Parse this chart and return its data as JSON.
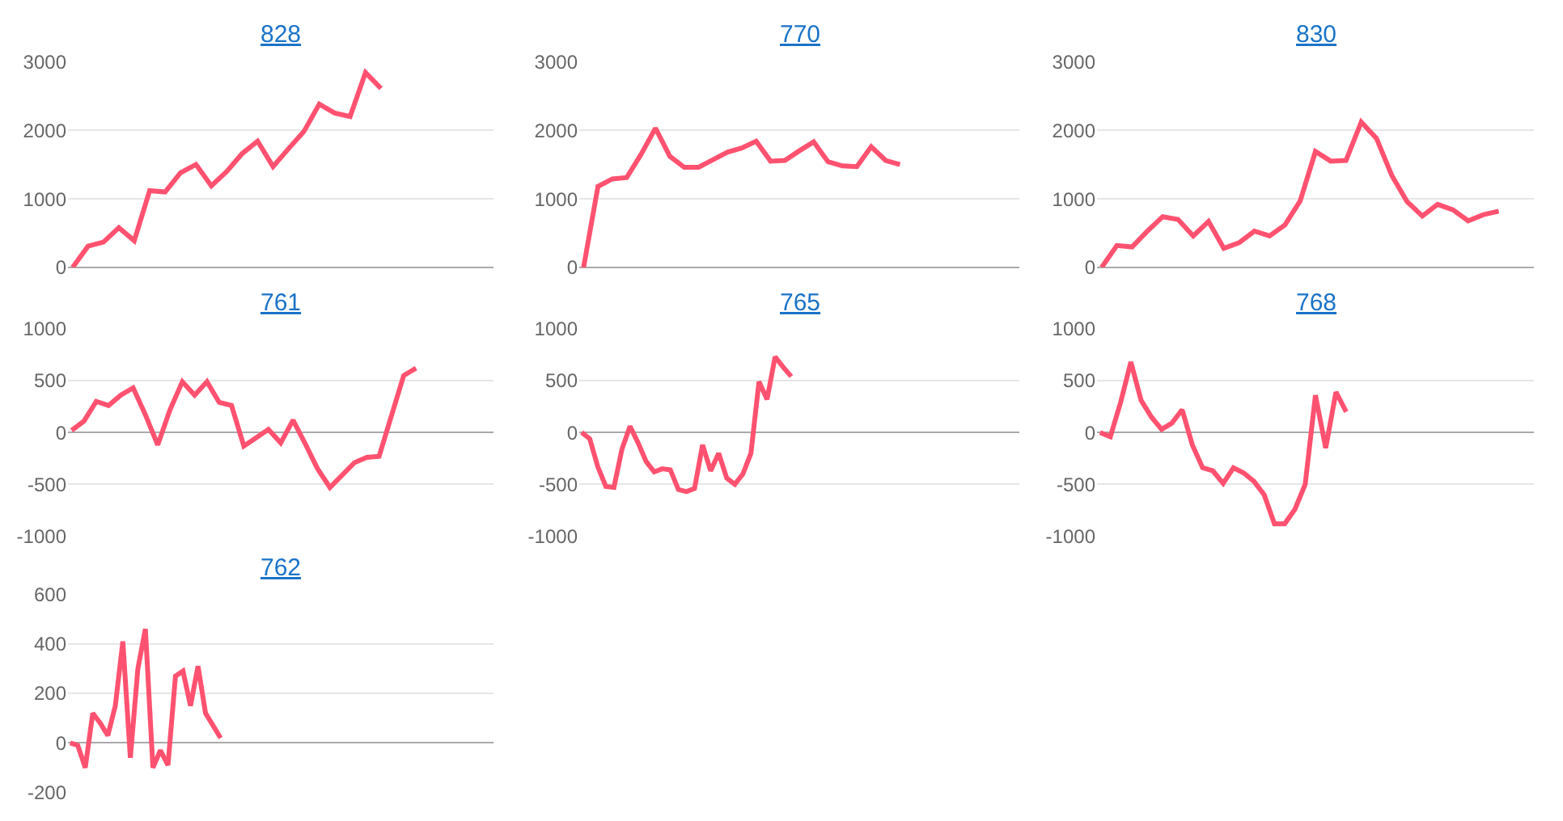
{
  "chart_data": [
    {
      "type": "line",
      "title": "828",
      "color": "#ff5270",
      "marker": "none",
      "grid": "y",
      "ylim": [
        0,
        3000
      ],
      "yticks": [
        0,
        1000,
        2000,
        3000
      ],
      "categories": [
        null,
        null,
        null,
        null,
        null,
        null,
        null,
        null,
        null,
        null,
        null,
        null,
        null,
        null,
        null,
        null,
        null,
        null,
        null,
        null,
        null,
        null,
        null,
        null,
        null,
        null,
        null,
        null
      ],
      "values": [
        0,
        310,
        370,
        580,
        390,
        1120,
        1100,
        1380,
        1500,
        1190,
        1400,
        1660,
        1840,
        1470,
        1730,
        1980,
        2380,
        2250,
        2200,
        2840,
        2610,
        null,
        null,
        null,
        null,
        null,
        null,
        null
      ]
    },
    {
      "type": "line",
      "title": "770",
      "color": "#ff5270",
      "marker": "none",
      "grid": "y",
      "ylim": [
        0,
        3000
      ],
      "yticks": [
        0,
        1000,
        2000,
        3000
      ],
      "categories": [
        null,
        null,
        null,
        null,
        null,
        null,
        null,
        null,
        null,
        null,
        null,
        null,
        null,
        null,
        null,
        null,
        null,
        null,
        null,
        null,
        null,
        null,
        null,
        null,
        null,
        null,
        null,
        null,
        null,
        null,
        null
      ],
      "values": [
        0,
        1180,
        1290,
        1310,
        1650,
        2030,
        1620,
        1460,
        1460,
        1570,
        1680,
        1740,
        1840,
        1550,
        1560,
        1700,
        1830,
        1540,
        1480,
        1470,
        1760,
        1560,
        1500,
        null,
        null,
        null,
        null,
        null,
        null,
        null,
        null
      ]
    },
    {
      "type": "line",
      "title": "830",
      "color": "#ff5270",
      "marker": "none",
      "grid": "y",
      "ylim": [
        0,
        3000
      ],
      "yticks": [
        0,
        1000,
        2000,
        3000
      ],
      "categories": [
        null,
        null,
        null,
        null,
        null,
        null,
        null,
        null,
        null,
        null,
        null,
        null,
        null,
        null,
        null,
        null,
        null,
        null,
        null,
        null,
        null,
        null,
        null,
        null,
        null,
        null,
        null,
        null,
        null
      ],
      "values": [
        0,
        320,
        300,
        530,
        740,
        700,
        460,
        670,
        280,
        360,
        530,
        460,
        620,
        970,
        1690,
        1550,
        1560,
        2120,
        1880,
        1340,
        960,
        750,
        920,
        840,
        680,
        770,
        820,
        null,
        null
      ]
    },
    {
      "type": "line",
      "title": "761",
      "color": "#ff5270",
      "marker": "none",
      "grid": "y",
      "ylim": [
        -1000,
        1000
      ],
      "yticks": [
        -1000,
        -500,
        0,
        500,
        1000
      ],
      "categories": [
        null,
        null,
        null,
        null,
        null,
        null,
        null,
        null,
        null,
        null,
        null,
        null,
        null,
        null,
        null,
        null,
        null,
        null,
        null,
        null,
        null,
        null,
        null,
        null,
        null,
        null,
        null,
        null,
        null,
        null,
        null,
        null,
        null,
        null,
        null
      ],
      "values": [
        20,
        110,
        300,
        260,
        360,
        430,
        170,
        -120,
        220,
        490,
        360,
        490,
        290,
        260,
        -130,
        -50,
        30,
        -100,
        120,
        -110,
        -350,
        -530,
        -410,
        -290,
        -240,
        -230,
        160,
        550,
        620,
        null,
        null,
        null,
        null,
        null,
        null
      ]
    },
    {
      "type": "line",
      "title": "765",
      "color": "#ff5270",
      "marker": "none",
      "grid": "y",
      "ylim": [
        -1000,
        1000
      ],
      "yticks": [
        -1000,
        -500,
        0,
        500,
        1000
      ],
      "categories": [
        null,
        null,
        null,
        null,
        null,
        null,
        null,
        null,
        null,
        null,
        null,
        null,
        null,
        null,
        null,
        null,
        null,
        null,
        null,
        null,
        null,
        null,
        null,
        null,
        null,
        null,
        null,
        null,
        null,
        null,
        null,
        null,
        null,
        null,
        null,
        null,
        null,
        null,
        null,
        null,
        null,
        null,
        null,
        null,
        null,
        null,
        null,
        null,
        null,
        null,
        null,
        null,
        null,
        null,
        null
      ],
      "values": [
        0,
        -60,
        -330,
        -520,
        -530,
        -160,
        60,
        -100,
        -280,
        -380,
        -350,
        -360,
        -550,
        -570,
        -540,
        -120,
        -370,
        -200,
        -440,
        -500,
        -400,
        -200,
        490,
        320,
        730,
        630,
        540,
        null,
        null,
        null,
        null,
        null,
        null,
        null,
        null,
        null,
        null,
        null,
        null,
        null,
        null,
        null,
        null,
        null,
        null,
        null,
        null,
        null,
        null,
        null,
        null,
        null,
        null,
        null,
        null
      ]
    },
    {
      "type": "line",
      "title": "768",
      "color": "#ff5270",
      "marker": "none",
      "grid": "y",
      "ylim": [
        -1000,
        1000
      ],
      "yticks": [
        -1000,
        -500,
        0,
        500,
        1000
      ],
      "categories": [
        null,
        null,
        null,
        null,
        null,
        null,
        null,
        null,
        null,
        null,
        null,
        null,
        null,
        null,
        null,
        null,
        null,
        null,
        null,
        null,
        null,
        null,
        null,
        null,
        null,
        null,
        null,
        null,
        null,
        null,
        null,
        null,
        null,
        null,
        null,
        null,
        null,
        null,
        null,
        null,
        null,
        null,
        null
      ],
      "values": [
        0,
        -40,
        290,
        680,
        310,
        150,
        30,
        90,
        220,
        -120,
        -340,
        -370,
        -490,
        -340,
        -390,
        -470,
        -600,
        -880,
        -880,
        -740,
        -500,
        360,
        -150,
        390,
        200,
        null,
        null,
        null,
        null,
        null,
        null,
        null,
        null,
        null,
        null,
        null,
        null,
        null,
        null,
        null,
        null,
        null,
        null
      ]
    },
    {
      "type": "line",
      "title": "762",
      "color": "#ff5270",
      "marker": "none",
      "grid": "y",
      "ylim": [
        -200,
        600
      ],
      "yticks": [
        -200,
        0,
        200,
        400,
        600
      ],
      "categories": [
        null,
        null,
        null,
        null,
        null,
        null,
        null,
        null,
        null,
        null,
        null,
        null,
        null,
        null,
        null,
        null,
        null,
        null,
        null,
        null,
        null,
        null,
        null,
        null,
        null,
        null,
        null,
        null,
        null,
        null,
        null,
        null,
        null,
        null,
        null,
        null,
        null,
        null,
        null,
        null,
        null,
        null,
        null,
        null,
        null,
        null,
        null,
        null,
        null,
        null,
        null,
        null,
        null,
        null,
        null,
        null,
        null
      ],
      "values": [
        0,
        -10,
        -100,
        120,
        80,
        30,
        150,
        410,
        -60,
        300,
        460,
        -100,
        -30,
        -90,
        270,
        290,
        150,
        310,
        120,
        70,
        20,
        null,
        null,
        null,
        null,
        null,
        null,
        null,
        null,
        null,
        null,
        null,
        null,
        null,
        null,
        null,
        null,
        null,
        null,
        null,
        null,
        null,
        null,
        null,
        null,
        null,
        null,
        null,
        null,
        null,
        null,
        null,
        null,
        null,
        null,
        null,
        null
      ]
    }
  ]
}
